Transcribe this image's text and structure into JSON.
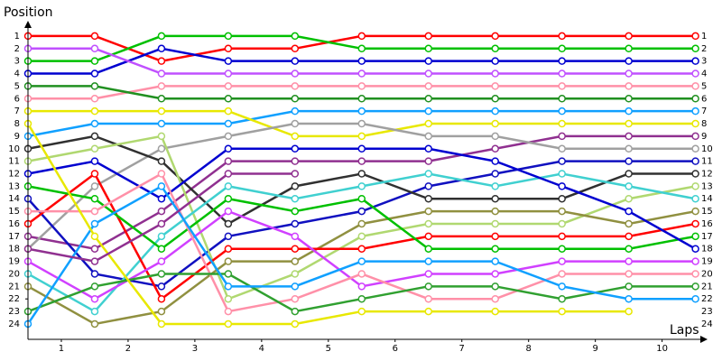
{
  "chart_data": {
    "type": "line",
    "y_title": "Position",
    "x_title": "Laps",
    "x": [
      0,
      1,
      2,
      3,
      4,
      5,
      6,
      7,
      8,
      9,
      10
    ],
    "xlim": [
      0,
      10.1
    ],
    "xticks": [
      {
        "value": 0.5,
        "label": "1"
      },
      {
        "value": 1.5,
        "label": "2"
      },
      {
        "value": 2.5,
        "label": "3"
      },
      {
        "value": 3.5,
        "label": "4"
      },
      {
        "value": 4.5,
        "label": "5"
      },
      {
        "value": 5.5,
        "label": "6"
      },
      {
        "value": 6.5,
        "label": "7"
      },
      {
        "value": 7.5,
        "label": "8"
      },
      {
        "value": 8.5,
        "label": "9"
      },
      {
        "value": 9.5,
        "label": "10"
      }
    ],
    "ylim": [
      0.14,
      25.23
    ],
    "y_reversed": true,
    "yticks": [
      1,
      2,
      3,
      4,
      5,
      6,
      7,
      8,
      9,
      10,
      11,
      12,
      13,
      14,
      15,
      16,
      17,
      18,
      19,
      20,
      21,
      22,
      23,
      24
    ],
    "series": [
      {
        "color": "#ff0000",
        "values": [
          1,
          1,
          3,
          2,
          2,
          1,
          1,
          1,
          1,
          1,
          1
        ]
      },
      {
        "color": "#00c000",
        "values": [
          3,
          3,
          1,
          1,
          1,
          2,
          2,
          2,
          2,
          2,
          2
        ]
      },
      {
        "color": "#0000d0",
        "values": [
          4,
          4,
          2,
          3,
          3,
          3,
          3,
          3,
          3,
          3,
          3
        ]
      },
      {
        "color": "#c050ff",
        "values": [
          2,
          2,
          4,
          4,
          4,
          4,
          4,
          4,
          4,
          4,
          4
        ]
      },
      {
        "color": "#ff90a8",
        "values": [
          6,
          6,
          5,
          5,
          5,
          5,
          5,
          5,
          5,
          5,
          5
        ]
      },
      {
        "color": "#209020",
        "values": [
          5,
          5,
          6,
          6,
          6,
          6,
          6,
          6,
          6,
          6,
          6
        ]
      },
      {
        "color": "#10a0ff",
        "values": [
          9,
          8,
          8,
          8,
          7,
          7,
          7,
          7,
          7,
          7,
          7
        ]
      },
      {
        "color": "#e8e800",
        "values": [
          7,
          7,
          7,
          7,
          9,
          9,
          8,
          8,
          8,
          8,
          8
        ]
      },
      {
        "color": "#903090",
        "values": [
          17,
          18,
          15,
          11,
          11,
          11,
          11,
          10,
          9,
          9,
          9
        ]
      },
      {
        "color": "#a0a0a0",
        "values": [
          18,
          13,
          10,
          9,
          8,
          8,
          9,
          9,
          10,
          10,
          10
        ]
      },
      {
        "color": "#1010c0",
        "values": [
          14,
          20,
          21,
          17,
          16,
          15,
          13,
          12,
          11,
          11,
          11
        ]
      },
      {
        "color": "#303030",
        "values": [
          10,
          9,
          11,
          16,
          13,
          12,
          14,
          14,
          14,
          12,
          12
        ]
      },
      {
        "color": "#b0d870",
        "values": [
          11,
          10,
          9,
          22,
          20,
          17,
          16,
          16,
          16,
          14,
          13
        ]
      },
      {
        "color": "#40d0d0",
        "values": [
          20,
          23,
          17,
          13,
          14,
          13,
          12,
          13,
          12,
          13,
          14
        ]
      },
      {
        "color": "#909040",
        "values": [
          21,
          24,
          23,
          19,
          19,
          16,
          15,
          15,
          15,
          16,
          15
        ]
      },
      {
        "color": "#ff0000",
        "values": [
          16,
          12,
          22,
          18,
          18,
          18,
          17,
          17,
          17,
          17,
          16
        ]
      },
      {
        "color": "#00c000",
        "values": [
          13,
          14,
          18,
          14,
          15,
          14,
          18,
          18,
          18,
          18,
          17
        ]
      },
      {
        "color": "#0000d0",
        "values": [
          12,
          11,
          14,
          10,
          10,
          10,
          10,
          11,
          13,
          15,
          18
        ]
      },
      {
        "color": "#d040ff",
        "values": [
          19,
          22,
          19,
          15,
          17,
          21,
          20,
          20,
          19,
          19,
          19
        ]
      },
      {
        "color": "#ff90a8",
        "values": [
          15,
          15,
          12,
          23,
          22,
          20,
          22,
          22,
          20,
          20,
          20
        ]
      },
      {
        "color": "#30a030",
        "values": [
          23,
          21,
          20,
          20,
          23,
          22,
          21,
          21,
          22,
          21,
          21
        ]
      },
      {
        "color": "#10a0ff",
        "values": [
          24,
          16,
          13,
          21,
          21,
          19,
          19,
          19,
          21,
          22,
          22
        ]
      },
      {
        "color": "#e8e800",
        "values": [
          8,
          17,
          24,
          24,
          24,
          23,
          23,
          23,
          23,
          23,
          null
        ]
      },
      {
        "color": "#903090",
        "values": [
          18,
          19,
          16,
          12,
          12,
          null,
          null,
          null,
          null,
          null,
          null
        ]
      }
    ]
  }
}
